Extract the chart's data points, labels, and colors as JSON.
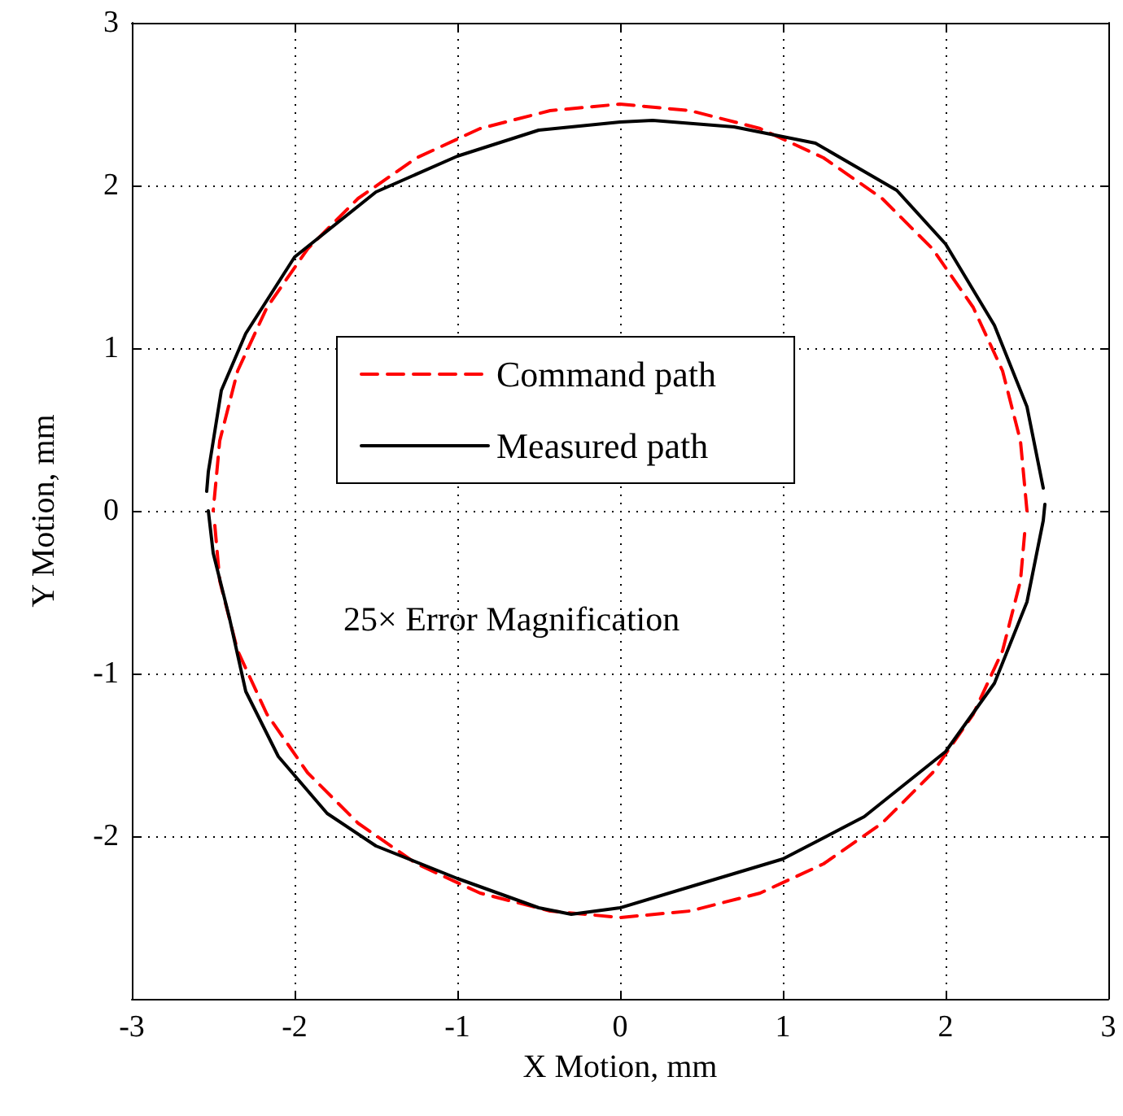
{
  "chart_data": {
    "type": "line",
    "xlabel": "X Motion, mm",
    "ylabel": "Y Motion, mm",
    "xlim": [
      -3,
      3
    ],
    "ylim": [
      -3,
      3
    ],
    "xticks": [
      -3,
      -2,
      -1,
      0,
      1,
      2,
      3
    ],
    "yticks": [
      -2,
      -1,
      0,
      1,
      2,
      3
    ],
    "grid": true,
    "legend": "top left",
    "marker": "none",
    "annotations": [
      "25× Error Magnification"
    ],
    "series": [
      {
        "name": "Command path",
        "color": "#ff0000",
        "line_style": "dashed",
        "x": [
          2.5,
          2.46,
          2.35,
          2.17,
          1.92,
          1.61,
          1.25,
          0.86,
          0.43,
          0,
          -0.43,
          -0.86,
          -1.25,
          -1.61,
          -1.92,
          -2.17,
          -2.35,
          -2.46,
          -2.5
        ],
        "values": [
          0,
          0.43,
          0.86,
          1.25,
          1.61,
          1.92,
          2.17,
          2.35,
          2.46,
          2.5,
          2.46,
          2.35,
          2.17,
          1.92,
          1.61,
          1.25,
          0.86,
          0.43,
          0
        ]
      },
      {
        "color": "#ff0000",
        "line_style": "dashed",
        "x": [
          -2.49,
          -2.46,
          -2.35,
          -2.17,
          -1.92,
          -1.61,
          -1.25,
          -0.86,
          -0.43,
          0,
          0.43,
          0.86,
          1.25,
          1.61,
          1.92,
          2.17,
          2.35,
          2.46,
          2.49
        ],
        "values": [
          -0.09,
          -0.43,
          -0.86,
          -1.25,
          -1.61,
          -1.92,
          -2.17,
          -2.35,
          -2.46,
          -2.5,
          -2.46,
          -2.35,
          -2.17,
          -1.92,
          -1.61,
          -1.25,
          -0.86,
          -0.43,
          -0.09
        ]
      },
      {
        "name": "Measured path",
        "color": "#000000",
        "line_style": "solid",
        "x": [
          2.6,
          2.5,
          2.3,
          2.0,
          1.7,
          1.2,
          0.7,
          0.2,
          0,
          -0.5,
          -1,
          -1.5,
          -2,
          -2.3,
          -2.45,
          -2.53,
          -2.54
        ],
        "values": [
          0.14,
          0.64,
          1.14,
          1.64,
          1.97,
          2.26,
          2.36,
          2.4,
          2.39,
          2.34,
          2.18,
          1.96,
          1.56,
          1.09,
          0.74,
          0.24,
          0.12
        ]
      },
      {
        "color": "#000000",
        "line_style": "solid",
        "x": [
          -2.53,
          -2.5,
          -2.4,
          -2.3,
          -2.1,
          -1.8,
          -1.5,
          -1,
          -0.5,
          -0.3,
          0,
          0.5,
          1,
          1.5,
          2,
          2.3,
          2.5,
          2.6,
          2.61
        ],
        "values": [
          0,
          -0.26,
          -0.66,
          -1.11,
          -1.51,
          -1.86,
          -2.06,
          -2.26,
          -2.44,
          -2.48,
          -2.44,
          -2.29,
          -2.14,
          -1.88,
          -1.48,
          -1.06,
          -0.56,
          -0.06,
          0.04
        ]
      }
    ]
  }
}
